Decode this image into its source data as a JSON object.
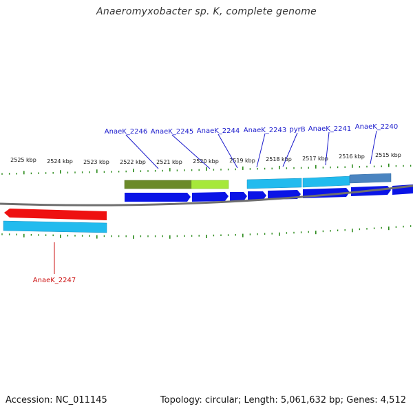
{
  "title": "Anaeromyxobacter sp. K, complete genome",
  "accession_text": "Accession: NC_011145",
  "stats_text": "Topology: circular; Length: 5,061,632 bp; Genes: 4,512",
  "colors": {
    "tick": "#2a8a1a",
    "backbone": "#777777",
    "cds_forward": "#0a14e6",
    "cds_reverse": "#ee1111",
    "gene_light_blue": "#22bbee",
    "olive": "#6b8a2a",
    "lime": "#a6e83a",
    "steel": "#4a84c0",
    "label_forward": "#1a1acc",
    "label_reverse": "#cc1111"
  },
  "scale_labels": [
    "2525 kbp",
    "2524 kbp",
    "2523 kbp",
    "2522 kbp",
    "2521 kbp",
    "2520 kbp",
    "2519 kbp",
    "2518 kbp",
    "2517 kbp",
    "2516 kbp",
    "2515 kbp"
  ],
  "gene_labels": [
    "AnaeK_2246",
    "AnaeK_2245",
    "AnaeK_2244",
    "AnaeK_2243",
    "pyrB",
    "AnaeK_2241",
    "AnaeK_2240",
    "AnaeK_2247"
  ]
}
